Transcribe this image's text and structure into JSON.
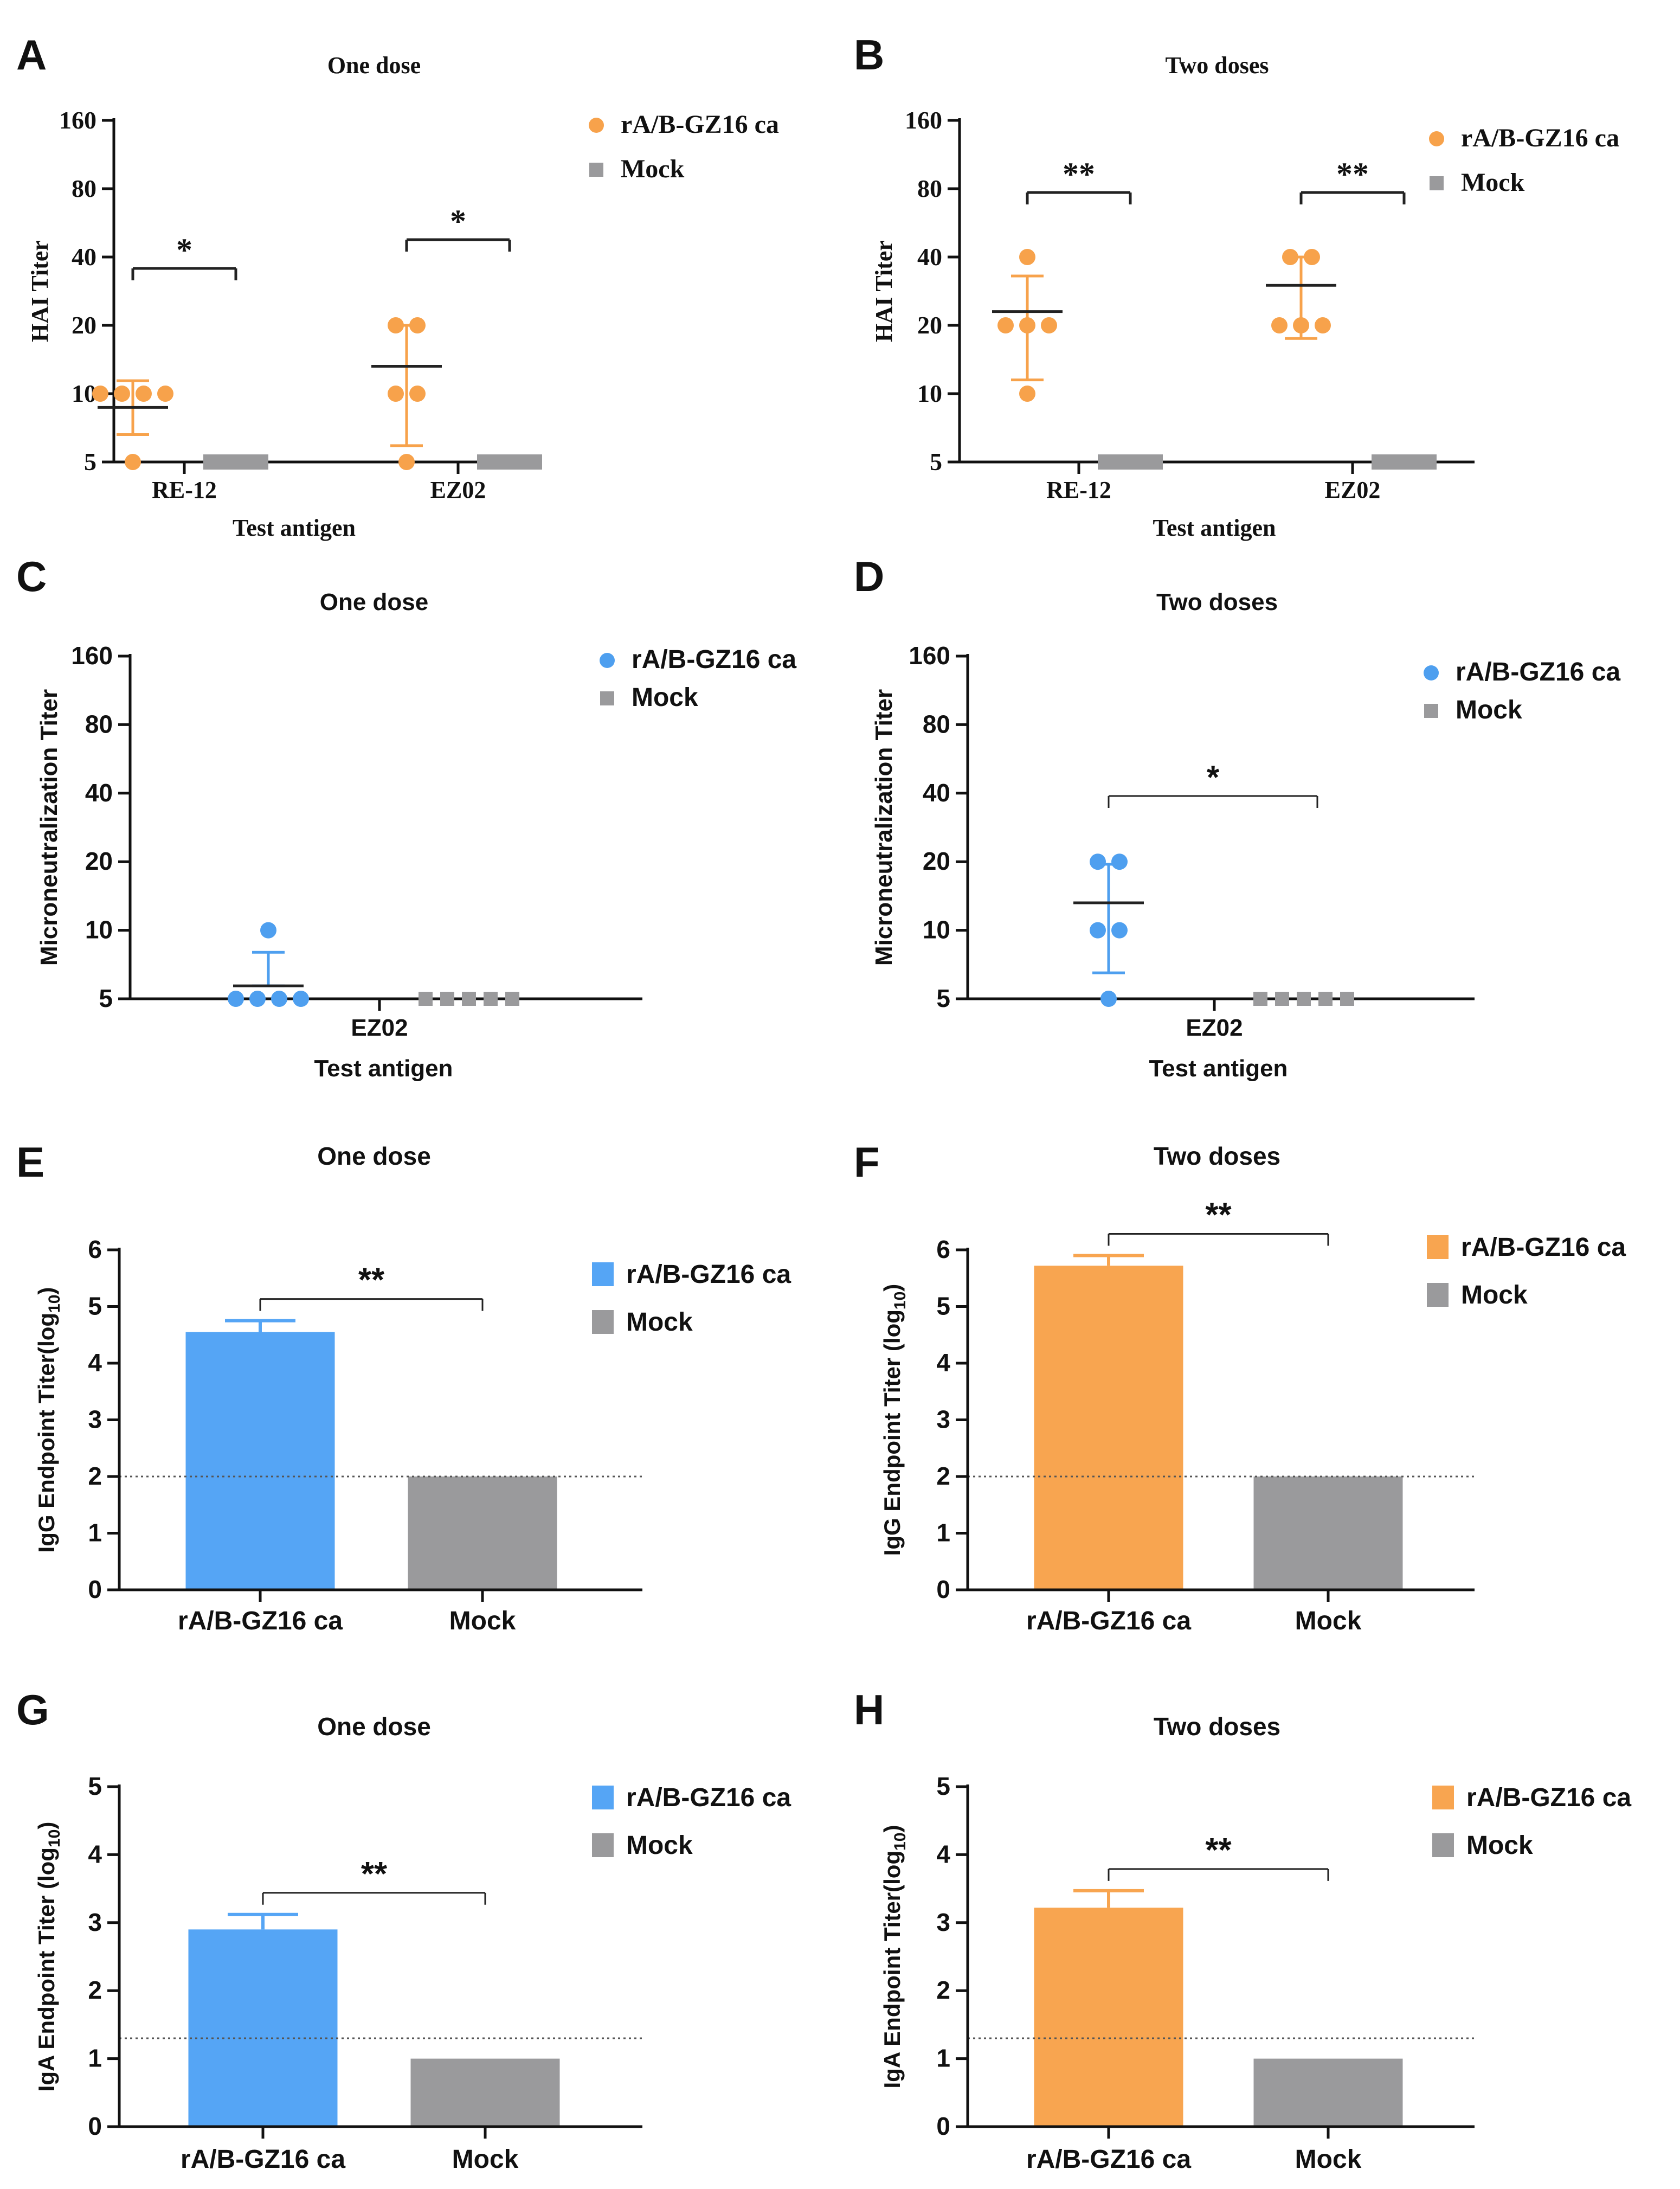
{
  "colors": {
    "orange": "#F7A24B",
    "blue": "#4E9FEF",
    "bar_blue": "#55A5F5",
    "bar_orange": "#F8A550",
    "gray": "#9A9A9C",
    "axis": "#111111"
  },
  "chart_data": [
    {
      "id": "A",
      "letter": "A",
      "type": "scatter",
      "title": "One  dose",
      "xlabel": "Test antigen",
      "ylabel": "HAI Titer",
      "yscale": "log2",
      "ylim": [
        5,
        160
      ],
      "yticks": [
        "5",
        "10",
        "20",
        "40",
        "80",
        "160"
      ],
      "groups": [
        "RE-12",
        "EZ02"
      ],
      "series": [
        {
          "name": "rA/B-GZ16 ca",
          "marker": "circle",
          "color": "orange",
          "values": [
            [
              5,
              10,
              10,
              10,
              10
            ],
            [
              5,
              10,
              10,
              20,
              20
            ]
          ],
          "mean": [
            8.7,
            13.2
          ],
          "err_low": [
            6.6,
            5.9
          ],
          "err_high": [
            11.4,
            20
          ]
        },
        {
          "name": "Mock",
          "marker": "square",
          "color": "gray",
          "values": [
            [
              5,
              5,
              5,
              5,
              5
            ],
            [
              5,
              5,
              5,
              5,
              5
            ]
          ]
        }
      ],
      "significance": [
        {
          "label": "*",
          "group": 0
        },
        {
          "label": "*",
          "group": 1
        }
      ]
    },
    {
      "id": "B",
      "letter": "B",
      "type": "scatter",
      "title": "Two doses",
      "xlabel": "Test antigen",
      "ylabel": "HAI Titer",
      "yscale": "log2",
      "ylim": [
        5,
        160
      ],
      "yticks": [
        "5",
        "10",
        "20",
        "40",
        "80",
        "160"
      ],
      "groups": [
        "RE-12",
        "EZ02"
      ],
      "series": [
        {
          "name": "rA/B-GZ16 ca",
          "marker": "circle",
          "color": "orange",
          "values": [
            [
              10,
              20,
              20,
              20,
              40
            ],
            [
              20,
              20,
              20,
              40,
              40
            ]
          ],
          "mean": [
            23,
            30
          ],
          "err_low": [
            11.5,
            17.5
          ],
          "err_high": [
            33,
            40
          ]
        },
        {
          "name": "Mock",
          "marker": "square",
          "color": "gray",
          "values": [
            [
              5,
              5,
              5,
              5,
              5
            ],
            [
              5,
              5,
              5,
              5,
              5
            ]
          ]
        }
      ],
      "significance": [
        {
          "label": "**",
          "group": 0
        },
        {
          "label": "**",
          "group": 1
        }
      ]
    },
    {
      "id": "C",
      "letter": "C",
      "type": "scatter",
      "title": "One  dose",
      "xlabel": "Test antigen",
      "ylabel": "Microneutralization Titer",
      "yscale": "log2",
      "ylim": [
        5,
        160
      ],
      "yticks": [
        "5",
        "10",
        "20",
        "40",
        "80",
        "160"
      ],
      "groups": [
        "EZ02"
      ],
      "series": [
        {
          "name": "rA/B-GZ16 ca",
          "marker": "circle",
          "color": "blue",
          "values": [
            [
              5,
              5,
              5,
              5,
              10
            ]
          ],
          "mean": [
            5.7
          ],
          "err_low": [
            5.7
          ],
          "err_high": [
            8
          ]
        },
        {
          "name": "Mock",
          "marker": "square",
          "color": "gray",
          "values": [
            [
              5,
              5,
              5,
              5,
              5
            ]
          ]
        }
      ],
      "significance": []
    },
    {
      "id": "D",
      "letter": "D",
      "type": "scatter",
      "title": "Two doses",
      "xlabel": "Test antigen",
      "ylabel": "Microneutralization Titer",
      "yscale": "log2",
      "ylim": [
        5,
        160
      ],
      "yticks": [
        "5",
        "10",
        "20",
        "40",
        "80",
        "160"
      ],
      "groups": [
        "EZ02"
      ],
      "series": [
        {
          "name": "rA/B-GZ16 ca",
          "marker": "circle",
          "color": "blue",
          "values": [
            [
              5,
              10,
              10,
              20,
              20
            ]
          ],
          "mean": [
            13.2
          ],
          "err_low": [
            6.5
          ],
          "err_high": [
            19.5
          ]
        },
        {
          "name": "Mock",
          "marker": "square",
          "color": "gray",
          "values": [
            [
              5,
              5,
              5,
              5,
              5
            ]
          ]
        }
      ],
      "significance": [
        {
          "label": "*",
          "group": 0
        }
      ]
    },
    {
      "id": "E",
      "letter": "E",
      "type": "bar",
      "title": "One dose",
      "xlabel": "",
      "ylabel": "IgG Endpoint Titer(log",
      "ylabel_sub": "10",
      "ylabel_end": ")",
      "ylim": [
        0,
        6
      ],
      "yticks": [
        "0",
        "1",
        "2",
        "3",
        "4",
        "5",
        "6"
      ],
      "categories": [
        "rA/B-GZ16 ca",
        "Mock"
      ],
      "values": [
        4.55,
        2.0
      ],
      "errors": [
        0.2,
        0
      ],
      "bar_colors": [
        "bar_blue",
        "gray"
      ],
      "dotted_line": 2.0,
      "legend": [
        {
          "name": "rA/B-GZ16 ca",
          "color": "bar_blue"
        },
        {
          "name": "Mock",
          "color": "gray"
        }
      ],
      "significance": {
        "label": "**"
      }
    },
    {
      "id": "F",
      "letter": "F",
      "type": "bar",
      "title": "Two doses",
      "xlabel": "",
      "ylabel": "IgG Endpoint Titer (log",
      "ylabel_sub": "10",
      "ylabel_end": ")",
      "ylim": [
        0,
        6
      ],
      "yticks": [
        "0",
        "1",
        "2",
        "3",
        "4",
        "5",
        "6"
      ],
      "categories": [
        "rA/B-GZ16 ca",
        "Mock"
      ],
      "values": [
        5.72,
        2.0
      ],
      "errors": [
        0.18,
        0
      ],
      "bar_colors": [
        "bar_orange",
        "gray"
      ],
      "dotted_line": 2.0,
      "legend": [
        {
          "name": "rA/B-GZ16 ca",
          "color": "bar_orange"
        },
        {
          "name": "Mock",
          "color": "gray"
        }
      ],
      "significance": {
        "label": "**"
      }
    },
    {
      "id": "G",
      "letter": "G",
      "type": "bar",
      "title": "One dose",
      "xlabel": "",
      "ylabel": "IgA Endpoint Titer (log",
      "ylabel_sub": "10",
      "ylabel_end": ")",
      "ylim": [
        0,
        5
      ],
      "yticks": [
        "0",
        "1",
        "2",
        "3",
        "4",
        "5"
      ],
      "categories": [
        "rA/B-GZ16 ca",
        "Mock"
      ],
      "values": [
        2.9,
        1.0
      ],
      "errors": [
        0.22,
        0
      ],
      "bar_colors": [
        "bar_blue",
        "gray"
      ],
      "dotted_line": 1.3,
      "legend": [
        {
          "name": "rA/B-GZ16 ca",
          "color": "bar_blue"
        },
        {
          "name": "Mock",
          "color": "gray"
        }
      ],
      "significance": {
        "label": "**"
      }
    },
    {
      "id": "H",
      "letter": "H",
      "type": "bar",
      "title": "Two doses",
      "xlabel": "",
      "ylabel": "IgA Endpoint Titer(log",
      "ylabel_sub": "10",
      "ylabel_end": ")",
      "ylim": [
        0,
        5
      ],
      "yticks": [
        "0",
        "1",
        "2",
        "3",
        "4",
        "5"
      ],
      "categories": [
        "rA/B-GZ16 ca",
        "Mock"
      ],
      "values": [
        3.22,
        1.0
      ],
      "errors": [
        0.25,
        0
      ],
      "bar_colors": [
        "bar_orange",
        "gray"
      ],
      "dotted_line": 1.3,
      "legend": [
        {
          "name": "rA/B-GZ16 ca",
          "color": "bar_orange"
        },
        {
          "name": "Mock",
          "color": "gray"
        }
      ],
      "significance": {
        "label": "**"
      }
    }
  ]
}
